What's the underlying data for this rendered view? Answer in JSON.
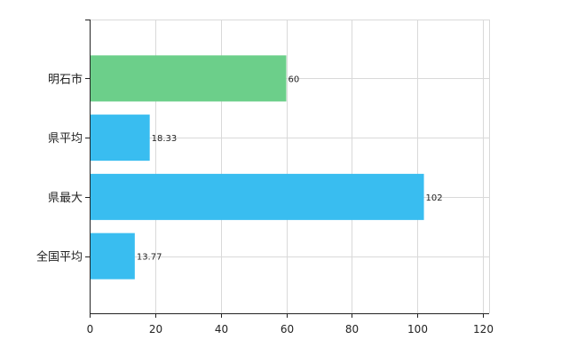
{
  "chart_data": {
    "type": "bar",
    "orientation": "horizontal",
    "categories": [
      "明石市",
      "県平均",
      "県最大",
      "全国平均"
    ],
    "values": [
      60,
      18.33,
      102,
      13.77
    ],
    "value_labels": [
      "60",
      "18.33",
      "102",
      "13.77"
    ],
    "colors": [
      "#6ccf8a",
      "#39bdf0",
      "#39bdf0",
      "#39bdf0"
    ],
    "xlim": [
      0,
      120
    ],
    "xticks": [
      0,
      20,
      40,
      60,
      80,
      100,
      120
    ],
    "xtick_labels": [
      "0",
      "20",
      "40",
      "60",
      "80",
      "100",
      "120"
    ],
    "grid": true,
    "title": "",
    "xlabel": "",
    "ylabel": ""
  }
}
